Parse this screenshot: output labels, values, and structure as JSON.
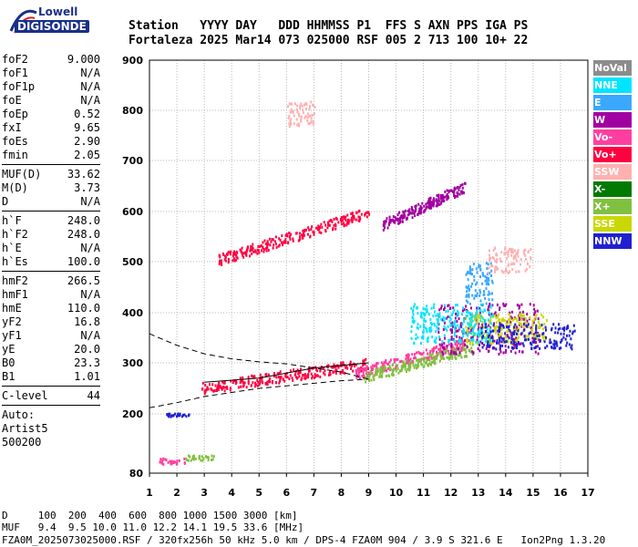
{
  "logo": {
    "line1": "Lowell",
    "line2": "DIGISONDE"
  },
  "header": {
    "row1": "Station   YYYY DAY   DDD HHMMSS P1  FFS S AXN PPS IGA PS",
    "row2": "Fortaleza 2025 Mar14 073 025000 RSF 005 2 713 100 10+ 22"
  },
  "params": [
    {
      "label": "foF2",
      "value": "9.000"
    },
    {
      "label": "foF1",
      "value": "N/A"
    },
    {
      "label": "foF1p",
      "value": "N/A"
    },
    {
      "label": "foE",
      "value": "N/A"
    },
    {
      "label": "foEp",
      "value": "0.52"
    },
    {
      "label": "fxI",
      "value": "9.65"
    },
    {
      "label": "foEs",
      "value": "2.90"
    },
    {
      "label": "fmin",
      "value": "2.05"
    },
    {
      "sep": true
    },
    {
      "label": "MUF(D)",
      "value": "33.62"
    },
    {
      "label": "M(D)",
      "value": "3.73"
    },
    {
      "label": "D",
      "value": "N/A"
    },
    {
      "sep": true
    },
    {
      "label": "h`F",
      "value": "248.0"
    },
    {
      "label": "h`F2",
      "value": "248.0"
    },
    {
      "label": "h`E",
      "value": "N/A"
    },
    {
      "label": "h`Es",
      "value": "100.0"
    },
    {
      "sep": true
    },
    {
      "label": "hmF2",
      "value": "266.5"
    },
    {
      "label": "hmF1",
      "value": "N/A"
    },
    {
      "label": "hmE",
      "value": "110.0"
    },
    {
      "label": "yF2",
      "value": "16.8"
    },
    {
      "label": "yF1",
      "value": "N/A"
    },
    {
      "label": "yE",
      "value": "20.0"
    },
    {
      "label": "B0",
      "value": "23.3"
    },
    {
      "label": "B1",
      "value": "1.01"
    },
    {
      "sep": true
    },
    {
      "label": "C-level",
      "value": "44"
    },
    {
      "sep": true
    },
    {
      "text": "Auto:"
    },
    {
      "text": "Artist5"
    },
    {
      "text": "500200"
    }
  ],
  "legend": [
    {
      "label": "NoVal",
      "color": "#8c8c8c"
    },
    {
      "label": "NNE",
      "color": "#00e5ff"
    },
    {
      "label": "E",
      "color": "#3aa8ff"
    },
    {
      "label": "W",
      "color": "#a000a0"
    },
    {
      "label": "Vo-",
      "color": "#ff3fa0"
    },
    {
      "label": "Vo+",
      "color": "#ff0040"
    },
    {
      "label": "SSW",
      "color": "#ffb0b0"
    },
    {
      "label": "X-",
      "color": "#007a00"
    },
    {
      "label": "X+",
      "color": "#80c040"
    },
    {
      "label": "SSE",
      "color": "#c8d800"
    },
    {
      "label": "NNW",
      "color": "#2020d0"
    }
  ],
  "footer": {
    "line1": "D     100  200  400  600  800 1000 1500 3000 [km]",
    "line2": "MUF   9.4  9.5 10.0 11.0 12.2 14.1 19.5 33.6 [MHz]",
    "line3": "FZA0M_2025073025000.RSF / 320fx256h 50 kHz 5.0 km / DPS-4 FZA0M 904 / 3.9 S 321.6 E   Ion2Png 1.3.20"
  },
  "chart_data": {
    "type": "scatter",
    "xlim": [
      1,
      17
    ],
    "ylim": [
      80,
      900
    ],
    "xticks": [
      1,
      2,
      3,
      4,
      5,
      6,
      7,
      8,
      9,
      10,
      11,
      12,
      13,
      14,
      15,
      16,
      17
    ],
    "yticks": [
      80,
      200,
      300,
      400,
      500,
      600,
      700,
      800,
      900
    ],
    "grid": true,
    "clusters": [
      {
        "name": "Es",
        "color": "#ff3fa0",
        "x": [
          1.3,
          2.3
        ],
        "y": [
          100,
          112
        ]
      },
      {
        "name": "Es-green",
        "color": "#80c040",
        "x": [
          2.3,
          3.4
        ],
        "y": [
          108,
          118
        ]
      },
      {
        "name": "Es2",
        "color": "#2020d0",
        "x": [
          1.6,
          2.5
        ],
        "y": [
          197,
          203
        ]
      },
      {
        "name": "F-low",
        "color": "#ff0040",
        "x": [
          2.9,
          9.0
        ],
        "y": [
          252,
          300
        ]
      },
      {
        "name": "F-main",
        "color": "#ff3fa0",
        "x": [
          8.5,
          12.5
        ],
        "y": [
          280,
          340
        ]
      },
      {
        "name": "F-main-green",
        "color": "#80c040",
        "x": [
          8.8,
          12.8
        ],
        "y": [
          275,
          330
        ]
      },
      {
        "name": "F-high-W",
        "color": "#a000a0",
        "x": [
          11.5,
          15.2
        ],
        "y": [
          320,
          420
        ]
      },
      {
        "name": "F-high-SSE",
        "color": "#c8d800",
        "x": [
          12.5,
          15.5
        ],
        "y": [
          340,
          400
        ]
      },
      {
        "name": "F-high-NNE",
        "color": "#00e5ff",
        "x": [
          10.5,
          13.5
        ],
        "y": [
          340,
          420
        ]
      },
      {
        "name": "E-spread",
        "color": "#3aa8ff",
        "x": [
          12.5,
          13.5
        ],
        "y": [
          420,
          500
        ]
      },
      {
        "name": "SSW-top",
        "color": "#ffb0b0",
        "x": [
          13.3,
          14.9
        ],
        "y": [
          480,
          530
        ]
      },
      {
        "name": "2F",
        "color": "#ff0040",
        "x": [
          3.5,
          9.0
        ],
        "y": [
          505,
          600
        ]
      },
      {
        "name": "2F-up",
        "color": "#a000a0",
        "x": [
          9.5,
          12.5
        ],
        "y": [
          575,
          650
        ]
      },
      {
        "name": "Multi",
        "color": "#ffb0b0",
        "x": [
          6.0,
          7.0
        ],
        "y": [
          770,
          820
        ]
      },
      {
        "name": "NNW-scatter",
        "color": "#2020d0",
        "x": [
          13.0,
          16.5
        ],
        "y": [
          330,
          380
        ]
      }
    ],
    "profile_top": {
      "x": [
        1.0,
        2.0,
        3.0,
        4.0,
        5.0,
        6.0,
        7.0,
        8.0,
        9.0
      ],
      "y": [
        358,
        335,
        318,
        308,
        302,
        298,
        290,
        282,
        268
      ]
    },
    "profile_bottom": {
      "x": [
        1.0,
        2.0,
        3.0,
        4.0,
        5.0,
        6.0,
        7.0,
        8.0,
        9.0
      ],
      "y": [
        212,
        222,
        234,
        242,
        250,
        255,
        260,
        265,
        268
      ]
    },
    "trace": {
      "x": [
        3.0,
        5.0,
        6.0,
        7.0,
        8.0,
        9.0
      ],
      "y": [
        262,
        270,
        280,
        290,
        295,
        300
      ]
    }
  }
}
